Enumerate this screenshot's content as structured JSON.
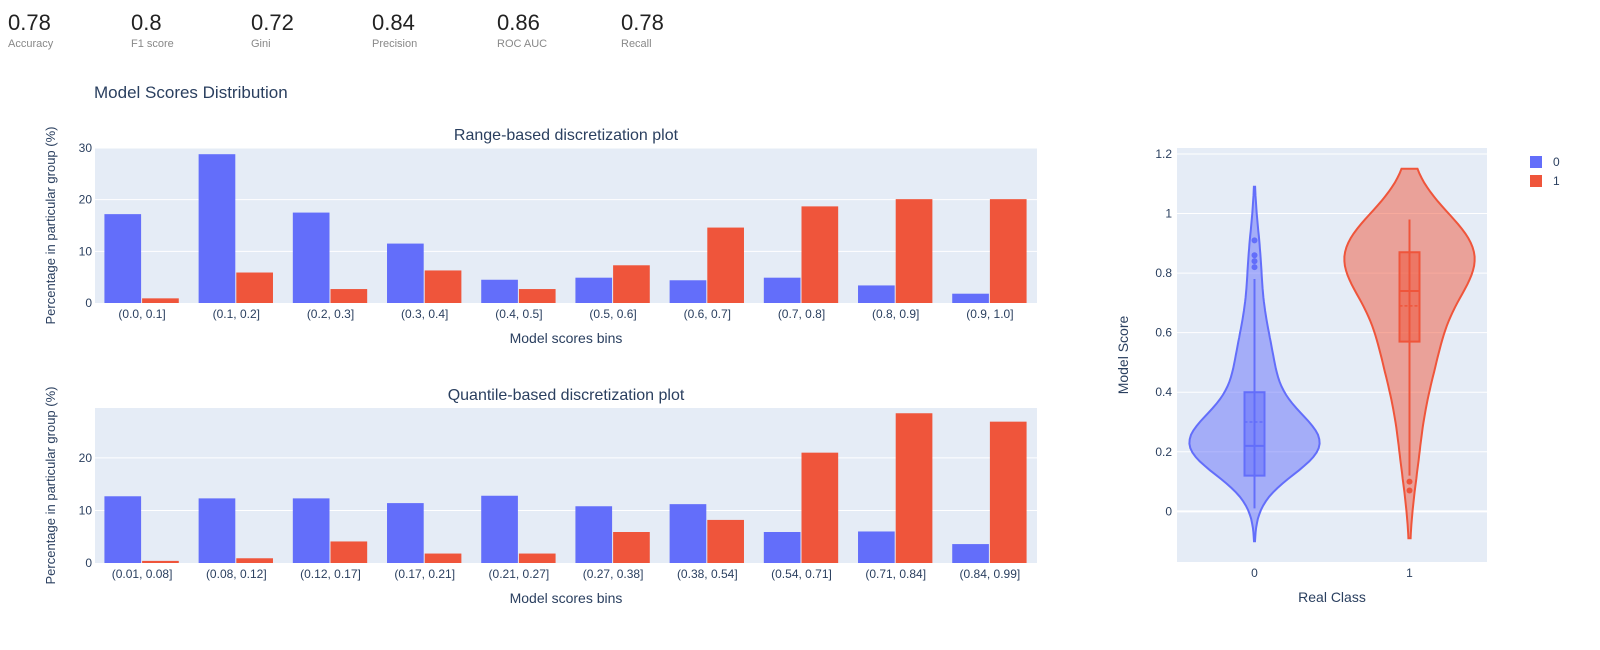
{
  "metrics": [
    {
      "value": "0.78",
      "label": "Accuracy"
    },
    {
      "value": "0.8",
      "label": "F1 score"
    },
    {
      "value": "0.72",
      "label": "Gini"
    },
    {
      "value": "0.84",
      "label": "Precision"
    },
    {
      "value": "0.86",
      "label": "ROC AUC"
    },
    {
      "value": "0.78",
      "label": "Recall"
    }
  ],
  "figure_title": "Model Scores Distribution",
  "colors": {
    "class0": "#636efa",
    "class1": "#ef553b",
    "plot_bg": "#e5ecf6",
    "text": "#2a3f5f"
  },
  "chart_data": [
    {
      "type": "bar",
      "title": "Range-based discretization plot",
      "xlabel": "Model scores bins",
      "ylabel": "Percentage in particular group (%)",
      "ylim": [
        0,
        30
      ],
      "yticks": [
        0,
        10,
        20,
        30
      ],
      "categories": [
        "(0.0, 0.1]",
        "(0.1, 0.2]",
        "(0.2, 0.3]",
        "(0.3, 0.4]",
        "(0.4, 0.5]",
        "(0.5, 0.6]",
        "(0.6, 0.7]",
        "(0.7, 0.8]",
        "(0.8, 0.9]",
        "(0.9, 1.0]"
      ],
      "series": [
        {
          "name": "0",
          "values": [
            17.2,
            28.8,
            17.5,
            11.5,
            4.5,
            4.9,
            4.4,
            4.9,
            3.4,
            1.8
          ]
        },
        {
          "name": "1",
          "values": [
            0.9,
            5.9,
            2.7,
            6.3,
            2.7,
            7.3,
            14.6,
            18.7,
            20.1,
            20.1
          ]
        }
      ]
    },
    {
      "type": "bar",
      "title": "Quantile-based discretization plot",
      "xlabel": "Model scores bins",
      "ylabel": "Percentage in particular group (%)",
      "ylim": [
        0,
        29.5
      ],
      "yticks": [
        0,
        10,
        20
      ],
      "categories": [
        "(0.01, 0.08]",
        "(0.08, 0.12]",
        "(0.12, 0.17]",
        "(0.17, 0.21]",
        "(0.21, 0.27]",
        "(0.27, 0.38]",
        "(0.38, 0.54]",
        "(0.54, 0.71]",
        "(0.71, 0.84]",
        "(0.84, 0.99]"
      ],
      "series": [
        {
          "name": "0",
          "values": [
            12.7,
            12.3,
            12.3,
            11.4,
            12.8,
            10.8,
            11.2,
            5.9,
            6.0,
            3.6
          ]
        },
        {
          "name": "1",
          "values": [
            0.4,
            0.9,
            4.1,
            1.8,
            1.8,
            5.9,
            8.2,
            21.0,
            28.5,
            26.9
          ]
        }
      ]
    },
    {
      "type": "violin",
      "xlabel": "Real Class",
      "ylabel": "Model Score",
      "ylim": [
        -0.17,
        1.22
      ],
      "yticks": [
        0,
        0.2,
        0.4,
        0.6,
        0.8,
        1,
        1.2
      ],
      "categories": [
        "0",
        "1"
      ],
      "legend": {
        "position": "top-right",
        "entries": [
          "0",
          "1"
        ]
      },
      "series": [
        {
          "name": "0",
          "min": 0.01,
          "q1": 0.12,
          "median": 0.22,
          "mean": 0.3,
          "q3": 0.4,
          "upper_fence": 0.78,
          "kde_min": -0.1,
          "kde_max": 1.09,
          "outliers": [
            0.82,
            0.84,
            0.86,
            0.91
          ]
        },
        {
          "name": "1",
          "min": 0.12,
          "q1": 0.57,
          "median": 0.74,
          "mean": 0.69,
          "q3": 0.87,
          "upper_fence": 0.98,
          "kde_min": -0.09,
          "kde_max": 1.15,
          "outliers": [
            0.07,
            0.1
          ]
        }
      ]
    }
  ]
}
